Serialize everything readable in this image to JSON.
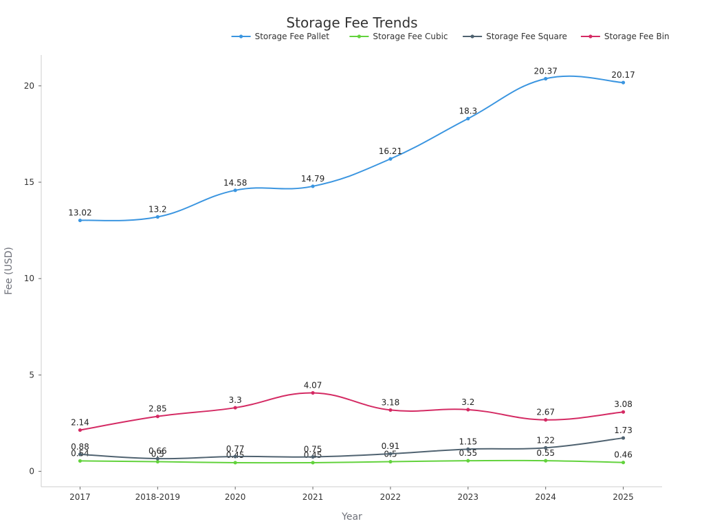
{
  "chart_data": {
    "type": "line",
    "title": "Storage Fee Trends",
    "xlabel": "Year",
    "ylabel": "Fee (USD)",
    "categories": [
      "2017",
      "2018-2019",
      "2020",
      "2021",
      "2022",
      "2023",
      "2024",
      "2025"
    ],
    "ylim": [
      -0.8,
      21.6
    ],
    "yticks": [
      0,
      5,
      10,
      15,
      20
    ],
    "yticklabels": [
      "0",
      "5",
      "10",
      "15",
      "20"
    ],
    "legend_position": "top",
    "grid": false,
    "series": [
      {
        "name": "Storage Fee Pallet",
        "color": "#3a95e0",
        "values": [
          13.02,
          13.2,
          14.58,
          14.79,
          16.21,
          18.3,
          20.37,
          20.17
        ],
        "labels": [
          "13.02",
          "13.2",
          "14.58",
          "14.79",
          "16.21",
          "18.3",
          "20.37",
          "20.17"
        ]
      },
      {
        "name": "Storage Fee Cubic",
        "color": "#62d23c",
        "values": [
          0.54,
          0.5,
          0.45,
          0.45,
          0.5,
          0.55,
          0.55,
          0.46
        ],
        "labels": [
          "0.54",
          "0.5",
          "0.45",
          "0.45",
          "0.5",
          "0.55",
          "0.55",
          "0.46"
        ]
      },
      {
        "name": "Storage Fee Square",
        "color": "#4f6270",
        "values": [
          0.88,
          0.66,
          0.77,
          0.75,
          0.91,
          1.15,
          1.22,
          1.73
        ],
        "labels": [
          "0.88",
          "0.66",
          "0.77",
          "0.75",
          "0.91",
          "1.15",
          "1.22",
          "1.73"
        ]
      },
      {
        "name": "Storage Fee Bin",
        "color": "#d42a63",
        "values": [
          2.14,
          2.85,
          3.3,
          4.07,
          3.18,
          3.2,
          2.67,
          3.08
        ],
        "labels": [
          "2.14",
          "2.85",
          "3.3",
          "4.07",
          "3.18",
          "3.2",
          "2.67",
          "3.08"
        ]
      }
    ]
  }
}
